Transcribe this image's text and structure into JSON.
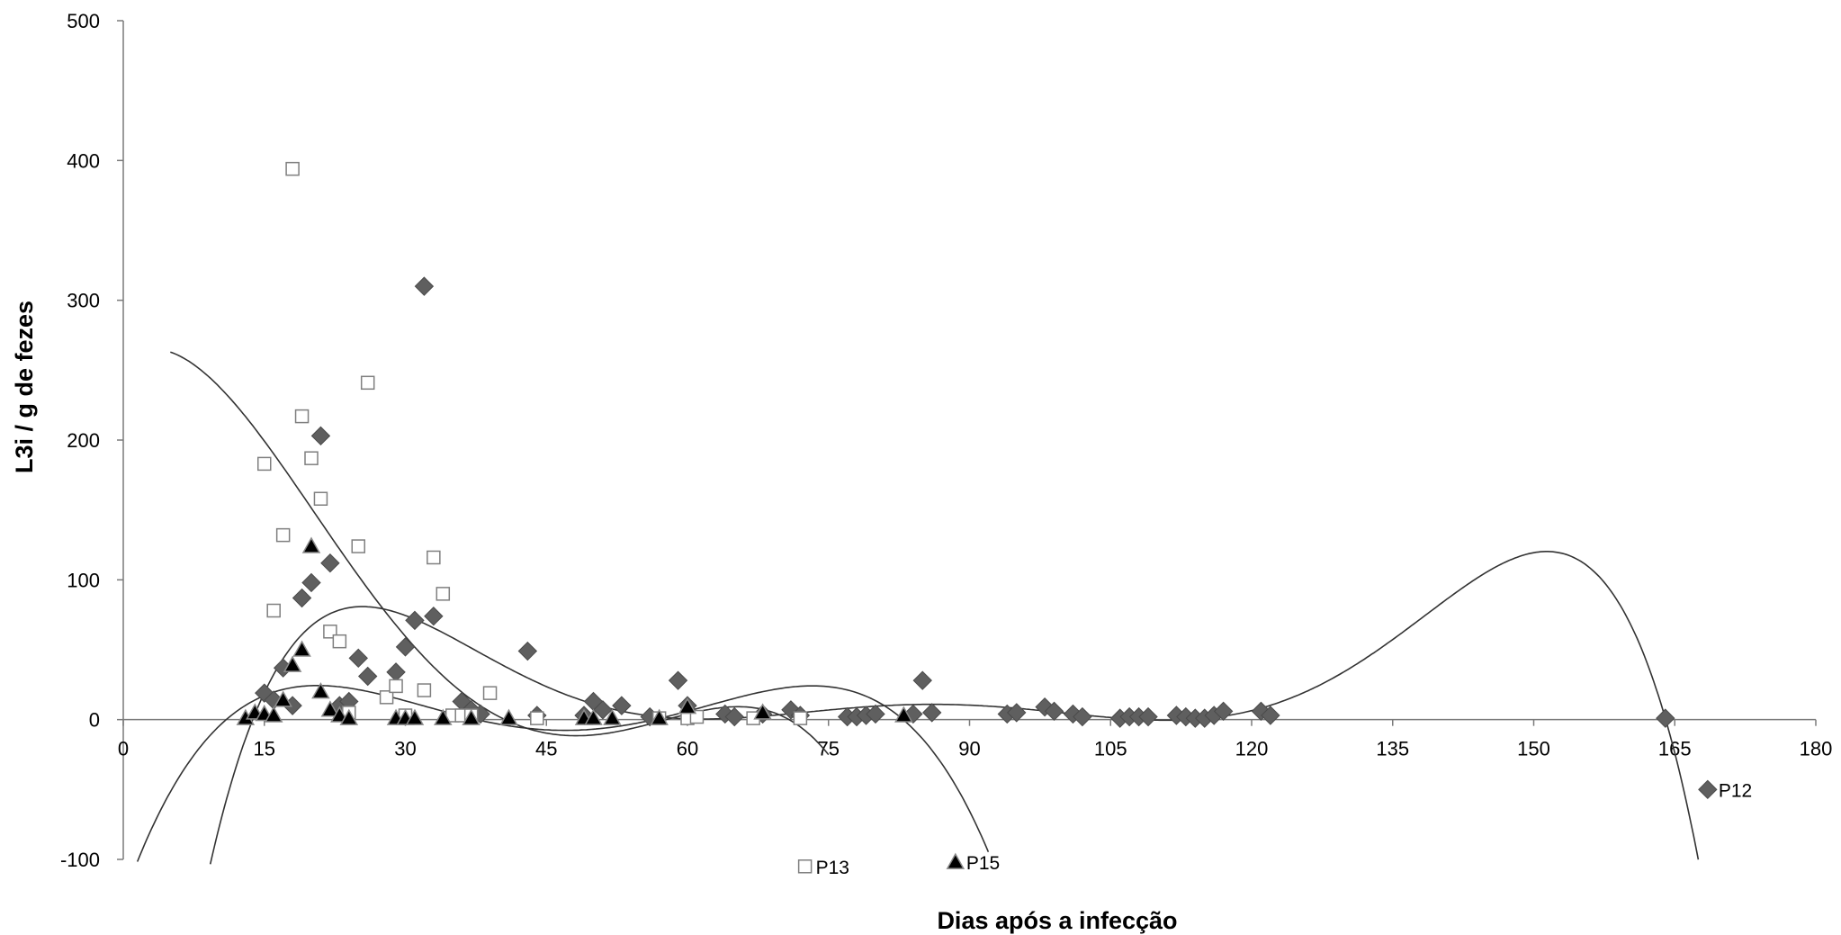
{
  "chart_data": {
    "type": "scatter",
    "title": "",
    "xlabel": "Dias após a infecção",
    "ylabel": "L3i / g de fezes",
    "xlim": [
      0,
      180
    ],
    "ylim": [
      -100,
      500
    ],
    "xticks": [
      "0",
      "15",
      "30",
      "45",
      "60",
      "75",
      "90",
      "105",
      "120",
      "135",
      "150",
      "165",
      "180"
    ],
    "yticks": [
      "-100",
      "0",
      "100",
      "200",
      "300",
      "400",
      "500"
    ],
    "grid": false,
    "legend": "inline labels at curve ends",
    "series": [
      {
        "name": "P12",
        "marker": "diamond-filled",
        "color": "#606060",
        "points": [
          [
            15,
            19
          ],
          [
            16,
            14
          ],
          [
            17,
            37
          ],
          [
            18,
            10
          ],
          [
            19,
            87
          ],
          [
            20,
            98
          ],
          [
            21,
            203
          ],
          [
            22,
            112
          ],
          [
            23,
            10
          ],
          [
            24,
            13
          ],
          [
            25,
            44
          ],
          [
            26,
            31
          ],
          [
            29,
            34
          ],
          [
            30,
            52
          ],
          [
            31,
            71
          ],
          [
            32,
            310
          ],
          [
            33,
            74
          ],
          [
            36,
            13
          ],
          [
            37,
            7
          ],
          [
            38,
            4
          ],
          [
            43,
            49
          ],
          [
            44,
            3
          ],
          [
            49,
            3
          ],
          [
            50,
            13
          ],
          [
            51,
            7
          ],
          [
            53,
            10
          ],
          [
            56,
            2
          ],
          [
            59,
            28
          ],
          [
            60,
            10
          ],
          [
            64,
            4
          ],
          [
            65,
            2
          ],
          [
            68,
            4
          ],
          [
            71,
            7
          ],
          [
            72,
            3
          ],
          [
            77,
            2
          ],
          [
            78,
            2
          ],
          [
            79,
            3
          ],
          [
            80,
            4
          ],
          [
            84,
            4
          ],
          [
            85,
            28
          ],
          [
            86,
            5
          ],
          [
            94,
            4
          ],
          [
            95,
            5
          ],
          [
            98,
            9
          ],
          [
            99,
            6
          ],
          [
            101,
            4
          ],
          [
            102,
            2
          ],
          [
            106,
            1
          ],
          [
            107,
            2
          ],
          [
            108,
            2
          ],
          [
            109,
            2
          ],
          [
            112,
            3
          ],
          [
            113,
            2
          ],
          [
            114,
            1
          ],
          [
            115,
            1
          ],
          [
            116,
            3
          ],
          [
            117,
            6
          ],
          [
            121,
            6
          ],
          [
            122,
            3
          ],
          [
            164,
            1
          ]
        ],
        "trend_label": "P12"
      },
      {
        "name": "P13",
        "marker": "square-open",
        "color": "#808080",
        "points": [
          [
            15,
            183
          ],
          [
            16,
            78
          ],
          [
            17,
            132
          ],
          [
            18,
            394
          ],
          [
            19,
            217
          ],
          [
            20,
            187
          ],
          [
            21,
            158
          ],
          [
            22,
            63
          ],
          [
            23,
            56
          ],
          [
            24,
            5
          ],
          [
            25,
            124
          ],
          [
            26,
            241
          ],
          [
            28,
            16
          ],
          [
            29,
            24
          ],
          [
            30,
            3
          ],
          [
            32,
            21
          ],
          [
            33,
            116
          ],
          [
            34,
            90
          ],
          [
            35,
            3
          ],
          [
            36,
            3
          ],
          [
            37,
            3
          ],
          [
            39,
            19
          ],
          [
            44,
            1
          ],
          [
            57,
            1
          ],
          [
            60,
            1
          ],
          [
            61,
            2
          ],
          [
            67,
            1
          ],
          [
            72,
            1
          ]
        ],
        "trend_label": "P13"
      },
      {
        "name": "P15",
        "marker": "triangle-filled",
        "color": "#000000",
        "points": [
          [
            13,
            1
          ],
          [
            14,
            5
          ],
          [
            15,
            4
          ],
          [
            16,
            3
          ],
          [
            17,
            14
          ],
          [
            18,
            39
          ],
          [
            19,
            50
          ],
          [
            20,
            124
          ],
          [
            21,
            20
          ],
          [
            22,
            7
          ],
          [
            23,
            3
          ],
          [
            24,
            1
          ],
          [
            29,
            1
          ],
          [
            30,
            1
          ],
          [
            31,
            1
          ],
          [
            34,
            1
          ],
          [
            37,
            1
          ],
          [
            41,
            1
          ],
          [
            49,
            1
          ],
          [
            50,
            1
          ],
          [
            52,
            1
          ],
          [
            57,
            1
          ],
          [
            60,
            9
          ],
          [
            68,
            5
          ],
          [
            83,
            3
          ]
        ],
        "trend_label": "P15"
      }
    ]
  }
}
